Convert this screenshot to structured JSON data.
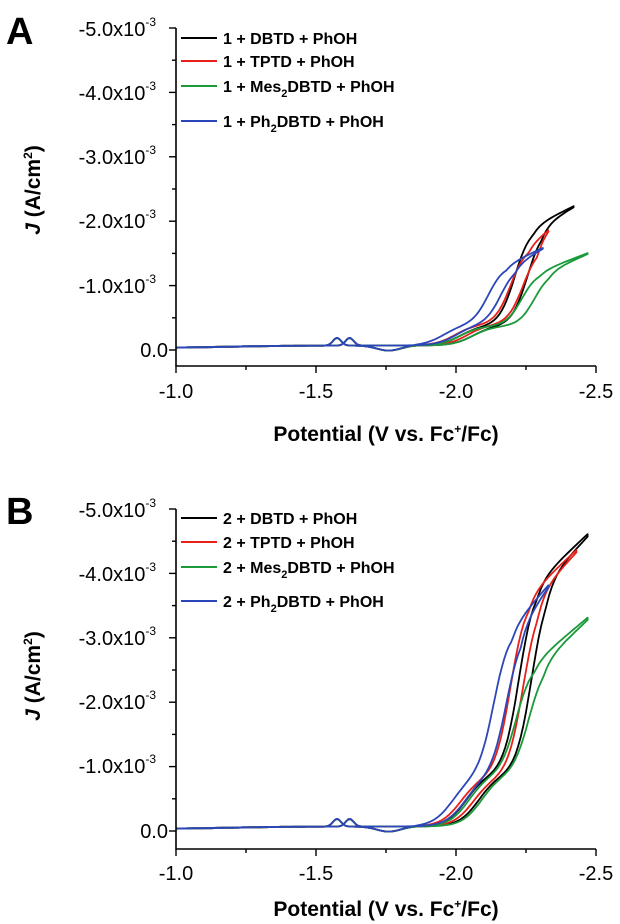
{
  "chart_data": [
    {
      "panel": "A",
      "type": "line",
      "xlabel": "Potential (V vs. Fc+/Fc)",
      "ylabel": "J (A/cm2)",
      "xlim": [
        -1.0,
        -2.5
      ],
      "ylim": [
        0.0,
        -0.005
      ],
      "x_ticks": [
        "-1.0",
        "-1.5",
        "-2.0",
        "-2.5"
      ],
      "y_ticks": [
        "0.0",
        "-1.0x10-3",
        "-2.0x10-3",
        "-3.0x10-3",
        "-4.0x10-3",
        "-5.0x10-3"
      ],
      "legend": [
        "1 + DBTD + PhOH",
        "1 + TPTD + PhOH",
        "1 + Mes2DBTD + PhOH",
        "1 + Ph2DBTD + PhOH"
      ],
      "series": [
        {
          "name": "1 + DBTD + PhOH",
          "color": "#000000",
          "curve": {
            "e1": -2.06,
            "a1": -0.3,
            "e2": -2.255,
            "a2": -1.85,
            "emax": -2.42,
            "jmax": -2.25
          }
        },
        {
          "name": "1 + TPTD + PhOH",
          "color": "#e8201a",
          "curve": {
            "e1": -2.04,
            "a1": -0.32,
            "e2": -2.24,
            "a2": -1.55,
            "emax": -2.33,
            "jmax": -1.87
          }
        },
        {
          "name": "1 + Mes2DBTD + PhOH",
          "color": "#1a9a3a",
          "curve": {
            "e1": -2.06,
            "a1": -0.3,
            "e2": -2.28,
            "a2": -1.15,
            "emax": -2.47,
            "jmax": -1.52
          }
        },
        {
          "name": "1 + Ph2DBTD + PhOH",
          "color": "#2b46b8",
          "curve": {
            "e1": -2.0,
            "a1": -0.32,
            "e2": -2.16,
            "a2": -1.25,
            "emax": -2.31,
            "jmax": -1.6
          }
        }
      ]
    },
    {
      "panel": "B",
      "type": "line",
      "xlabel": "Potential (V vs. Fc+/Fc)",
      "ylabel": "J (A/cm2)",
      "xlim": [
        -1.0,
        -2.5
      ],
      "ylim": [
        0.0,
        -0.005
      ],
      "x_ticks": [
        "-1.0",
        "-1.5",
        "-2.0",
        "-2.5"
      ],
      "y_ticks": [
        "0.0",
        "-1.0x10-3",
        "-2.0x10-3",
        "-3.0x10-3",
        "-4.0x10-3",
        "-5.0x10-3"
      ],
      "legend": [
        "2 + DBTD + PhOH",
        "2 + TPTD + PhOH",
        "2 + Mes2DBTD + PhOH",
        "2 + Ph2DBTD + PhOH"
      ],
      "series": [
        {
          "name": "2 + DBTD + PhOH",
          "color": "#000000",
          "curve": {
            "e1": -2.08,
            "a1": -0.8,
            "e2": -2.27,
            "a2": -3.8,
            "emax": -2.47,
            "jmax": -4.65
          }
        },
        {
          "name": "2 + TPTD + PhOH",
          "color": "#e8201a",
          "curve": {
            "e1": -2.06,
            "a1": -0.75,
            "e2": -2.24,
            "a2": -3.6,
            "emax": -2.43,
            "jmax": -4.4
          }
        },
        {
          "name": "2 + Mes2DBTD + PhOH",
          "color": "#1a9a3a",
          "curve": {
            "e1": -2.09,
            "a1": -0.8,
            "e2": -2.26,
            "a2": -2.55,
            "emax": -2.47,
            "jmax": -3.35
          }
        },
        {
          "name": "2 + Ph2DBTD + PhOH",
          "color": "#2b46b8",
          "curve": {
            "e1": -2.03,
            "a1": -0.75,
            "e2": -2.18,
            "a2": -3.1,
            "emax": -2.33,
            "jmax": -3.85
          }
        }
      ]
    }
  ],
  "panels": [
    {
      "letter": "A",
      "ylabel_main": "J",
      "ylabel_rest": " (A/cm",
      "ylabel_sup": "2",
      "ylabel_close": ")",
      "xlabel_main": "Potential (V vs. Fc",
      "xlabel_sup": "+",
      "xlabel_close": "/Fc)",
      "y_tick_base": [
        "0.0",
        "-1.0x10",
        "-2.0x10",
        "-3.0x10",
        "-4.0x10",
        "-5.0x10"
      ],
      "y_tick_exp": [
        "",
        "-3",
        "-3",
        "-3",
        "-3",
        "-3"
      ],
      "x_ticks": [
        "-1.0",
        "-1.5",
        "-2.0",
        "-2.5"
      ],
      "legend": [
        {
          "pre": "1 + DBTD + PhOH",
          "sub": "",
          "post": ""
        },
        {
          "pre": "1 + TPTD + PhOH",
          "sub": "",
          "post": ""
        },
        {
          "pre": "1 + Mes",
          "sub": "2",
          "post": "DBTD + PhOH"
        },
        {
          "pre": "1 + Ph",
          "sub": "2",
          "post": "DBTD + PhOH"
        }
      ]
    },
    {
      "letter": "B",
      "ylabel_main": "J",
      "ylabel_rest": " (A/cm",
      "ylabel_sup": "2",
      "ylabel_close": ")",
      "xlabel_main": "Potential (V vs. Fc",
      "xlabel_sup": "+",
      "xlabel_close": "/Fc)",
      "y_tick_base": [
        "0.0",
        "-1.0x10",
        "-2.0x10",
        "-3.0x10",
        "-4.0x10",
        "-5.0x10"
      ],
      "y_tick_exp": [
        "",
        "-3",
        "-3",
        "-3",
        "-3",
        "-3"
      ],
      "x_ticks": [
        "-1.0",
        "-1.5",
        "-2.0",
        "-2.5"
      ],
      "legend": [
        {
          "pre": "2 + DBTD + PhOH",
          "sub": "",
          "post": ""
        },
        {
          "pre": "2 + TPTD + PhOH",
          "sub": "",
          "post": ""
        },
        {
          "pre": "2 + Mes",
          "sub": "2",
          "post": "DBTD + PhOH"
        },
        {
          "pre": "2 + Ph",
          "sub": "2",
          "post": "DBTD + PhOH"
        }
      ]
    }
  ]
}
